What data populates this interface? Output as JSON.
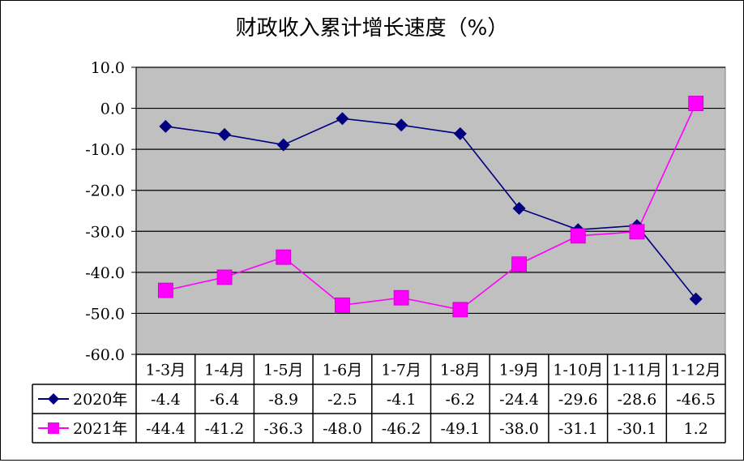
{
  "chart_data": {
    "type": "line",
    "title": "财政收入累计增长速度（%）",
    "categories": [
      "1-3月",
      "1-4月",
      "1-5月",
      "1-6月",
      "1-7月",
      "1-8月",
      "1-9月",
      "1-10月",
      "1-11月",
      "1-12月"
    ],
    "series": [
      {
        "name": "2020年",
        "values": [
          -4.4,
          -6.4,
          -8.9,
          -2.5,
          -4.1,
          -6.2,
          -24.4,
          -29.6,
          -28.6,
          -46.5
        ],
        "labels": [
          "-4.4",
          "-6.4",
          "-8.9",
          "-2.5",
          "-4.1",
          "-6.2",
          "-24.4",
          "-29.6",
          "-28.6",
          "-46.5"
        ],
        "color": "#000080",
        "marker": "diamond"
      },
      {
        "name": "2021年",
        "values": [
          -44.4,
          -41.2,
          -36.3,
          -48.0,
          -46.2,
          -49.1,
          -38.0,
          -31.1,
          -30.1,
          1.2
        ],
        "labels": [
          "-44.4",
          "-41.2",
          "-36.3",
          "-48.0",
          "-46.2",
          "-49.1",
          "-38.0",
          "-31.1",
          "-30.1",
          "1.2"
        ],
        "color": "#FF00FF",
        "marker": "square"
      }
    ],
    "ylim": [
      -60,
      10
    ],
    "yticks": [
      10,
      0,
      -10,
      -20,
      -30,
      -40,
      -50,
      -60
    ],
    "ytick_labels": [
      "10.0",
      "0.0",
      "-10.0",
      "-20.0",
      "-30.0",
      "-40.0",
      "-50.0",
      "-60.0"
    ],
    "plot_background": "#C0C0C0",
    "grid": true,
    "legend": "data-table"
  }
}
